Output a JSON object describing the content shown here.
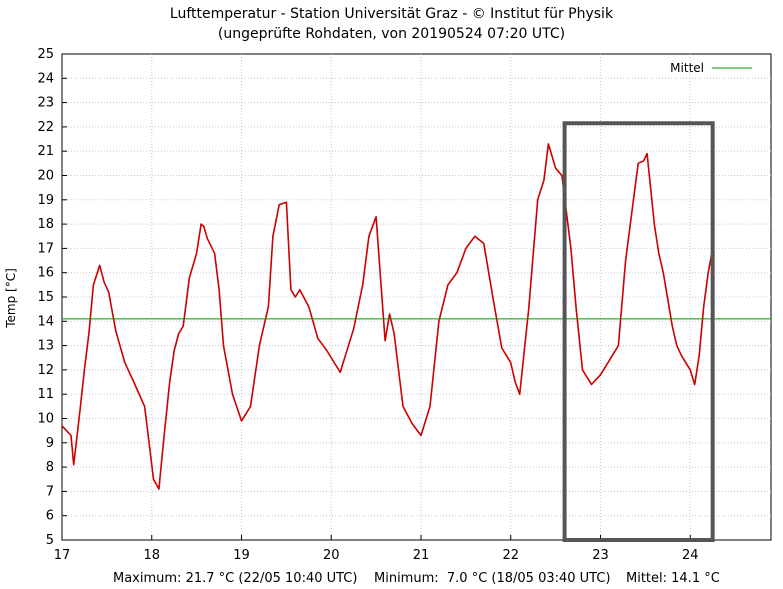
{
  "chart_data": {
    "type": "line",
    "title": "Lufttemperatur - Station Universität Graz -  © Institut für Physik",
    "subtitle": "(ungeprüfte Rohdaten, von 20190524 07:20 UTC)",
    "ylabel": "Temp [°C]",
    "xlabel": "",
    "ylim": [
      5,
      25
    ],
    "xlim": [
      17,
      24.9
    ],
    "y_ticks": [
      5,
      6,
      7,
      8,
      9,
      10,
      11,
      12,
      13,
      14,
      15,
      16,
      17,
      18,
      19,
      20,
      21,
      22,
      23,
      24,
      25
    ],
    "x_ticks": [
      17,
      18,
      19,
      20,
      21,
      22,
      23,
      24
    ],
    "x_tick_labels": [
      "17",
      "18",
      "19",
      "20",
      "21",
      "22",
      "23",
      "24"
    ],
    "grid": true,
    "legend_position": "top-right",
    "series": [
      {
        "name": "Temp",
        "color": "#cc0000",
        "x": [
          17.0,
          17.1,
          17.13,
          17.2,
          17.25,
          17.3,
          17.35,
          17.42,
          17.47,
          17.52,
          17.6,
          17.7,
          17.8,
          17.92,
          17.97,
          18.02,
          18.08,
          18.13,
          18.2,
          18.25,
          18.3,
          18.35,
          18.42,
          18.5,
          18.55,
          18.58,
          18.62,
          18.7,
          18.75,
          18.8,
          18.9,
          19.0,
          19.1,
          19.2,
          19.3,
          19.35,
          19.42,
          19.5,
          19.55,
          19.6,
          19.65,
          19.75,
          19.85,
          19.95,
          20.05,
          20.1,
          20.15,
          20.25,
          20.35,
          20.42,
          20.5,
          20.6,
          20.65,
          20.7,
          20.8,
          20.9,
          21.0,
          21.1,
          21.2,
          21.3,
          21.4,
          21.5,
          21.6,
          21.7,
          21.8,
          21.9,
          22.0,
          22.05,
          22.1,
          22.2,
          22.3,
          22.37,
          22.42,
          22.5,
          22.57,
          22.67,
          22.73,
          22.8,
          22.9,
          22.95,
          23.0,
          23.1,
          23.2,
          23.28,
          23.35,
          23.42,
          23.48,
          23.52,
          23.6,
          23.65,
          23.7,
          23.8,
          23.85,
          23.9,
          24.0,
          24.05,
          24.1,
          24.15,
          24.2,
          24.24
        ],
        "y": [
          9.7,
          9.3,
          8.1,
          10.3,
          12.0,
          13.5,
          15.5,
          16.3,
          15.6,
          15.2,
          13.6,
          12.3,
          11.5,
          10.5,
          9.0,
          7.5,
          7.1,
          9.0,
          11.5,
          12.8,
          13.5,
          13.8,
          15.8,
          16.8,
          18.0,
          17.9,
          17.4,
          16.8,
          15.3,
          13.0,
          11.0,
          9.9,
          10.5,
          13.0,
          14.6,
          17.5,
          18.8,
          18.9,
          15.3,
          15.0,
          15.3,
          14.6,
          13.3,
          12.8,
          12.2,
          11.9,
          12.5,
          13.7,
          15.5,
          17.5,
          18.3,
          13.2,
          14.3,
          13.5,
          10.5,
          9.8,
          9.3,
          10.5,
          14.0,
          15.5,
          16.0,
          17.0,
          17.5,
          17.2,
          15.0,
          12.9,
          12.3,
          11.5,
          11.0,
          14.5,
          19.0,
          19.8,
          21.3,
          20.3,
          20.0,
          17.0,
          14.5,
          12.0,
          11.4,
          11.6,
          11.8,
          12.4,
          13.0,
          16.5,
          18.5,
          20.5,
          20.6,
          20.9,
          18.0,
          16.8,
          16.0,
          13.8,
          13.0,
          12.6,
          12.0,
          11.4,
          12.6,
          14.6,
          16.0,
          16.8
        ]
      },
      {
        "name": "Mittel",
        "color": "#009900",
        "x": [
          17.0,
          24.9
        ],
        "y": [
          14.1,
          14.1
        ]
      }
    ],
    "highlight_box": {
      "x0": 22.6,
      "x1": 24.25,
      "y0": 5,
      "y1": 22.15,
      "color": "#555555"
    }
  },
  "legend": {
    "label": "Mittel"
  },
  "footer": {
    "maximum": "Maximum: 21.7 °C (22/05 10:40 UTC)",
    "minimum": "Minimum:  7.0 °C (18/05 03:40 UTC)",
    "mittel": "Mittel: 14.1 °C"
  }
}
